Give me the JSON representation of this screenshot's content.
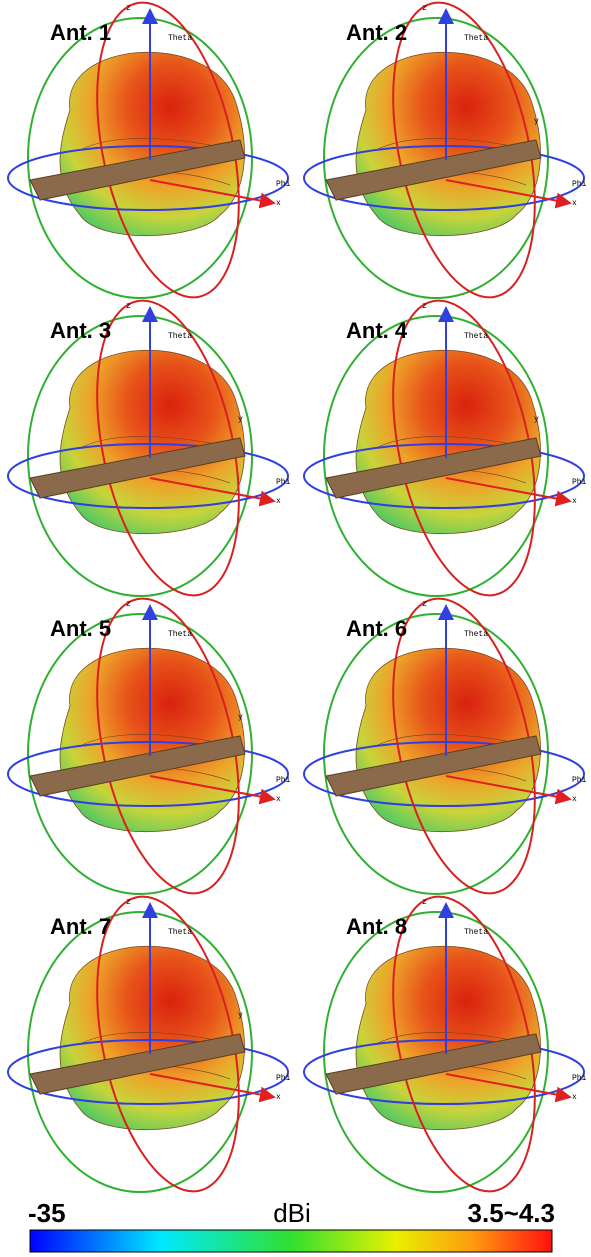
{
  "panels": [
    {
      "title": "Ant. 1",
      "axis_labels": {
        "z": "z",
        "theta": "Theta",
        "phi": "Phi",
        "x": "x"
      }
    },
    {
      "title": "Ant. 2",
      "axis_labels": {
        "z": "z",
        "theta": "Theta",
        "y": "y",
        "phi": "Phi",
        "x": "x"
      }
    },
    {
      "title": "Ant. 3",
      "axis_labels": {
        "z": "z",
        "theta": "Theta",
        "y": "y",
        "phi": "Phi",
        "x": "x"
      }
    },
    {
      "title": "Ant. 4",
      "axis_labels": {
        "z": "z",
        "theta": "Theta",
        "y": "y",
        "phi": "Phi",
        "x": "x"
      }
    },
    {
      "title": "Ant. 5",
      "axis_labels": {
        "z": "z",
        "theta": "Theta",
        "y": "y",
        "phi": "Phi",
        "x": "x"
      }
    },
    {
      "title": "Ant. 6",
      "axis_labels": {
        "z": "z",
        "theta": "Theta",
        "phi": "Phi",
        "x": "x"
      }
    },
    {
      "title": "Ant. 7",
      "axis_labels": {
        "z": "z",
        "theta": "Theta",
        "y": "y",
        "phi": "Phi",
        "x": "x"
      }
    },
    {
      "title": "Ant. 8",
      "axis_labels": {
        "z": "z",
        "theta": "Theta",
        "phi": "Phi",
        "x": "x"
      }
    }
  ],
  "colorbar": {
    "min_label": "-35",
    "unit": "dBi",
    "max_label": "3.5~4.3"
  }
}
